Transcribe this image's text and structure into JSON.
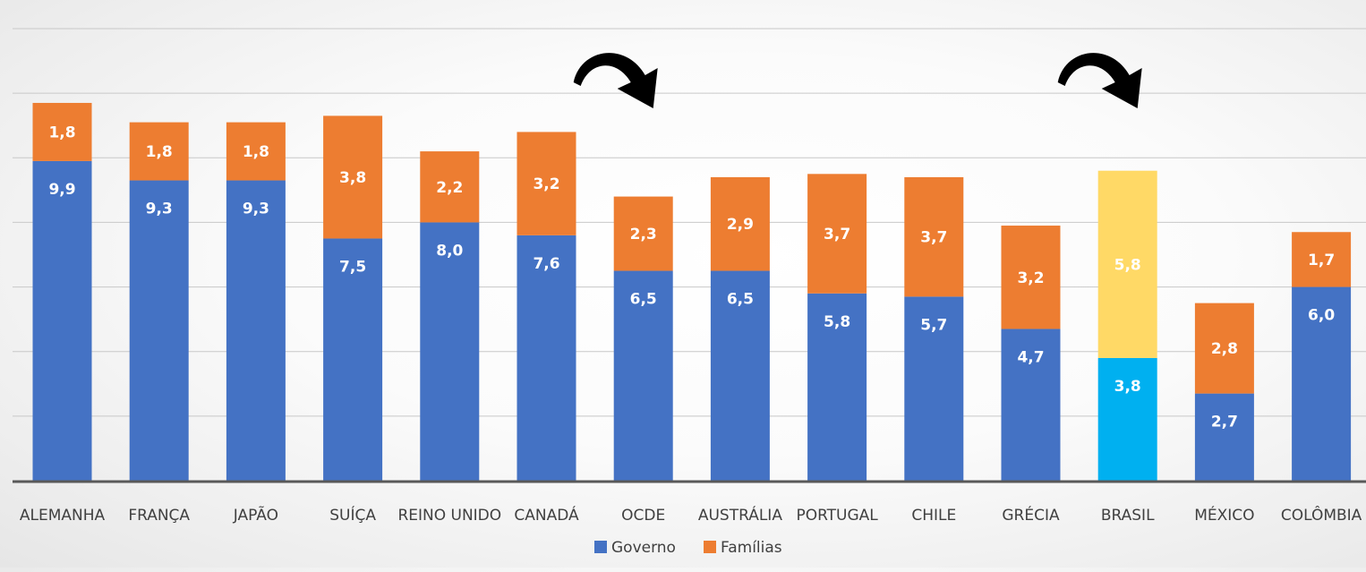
{
  "chart_data": {
    "type": "bar",
    "stacked": true,
    "categories": [
      "ALEMANHA",
      "FRANÇA",
      "JAPÃO",
      "SUÍÇA",
      "REINO UNIDO",
      "CANADÁ",
      "OCDE",
      "AUSTRÁLIA",
      "PORTUGAL",
      "CHILE",
      "GRÉCIA",
      "BRASIL",
      "MÉXICO",
      "COLÔMBIA"
    ],
    "series": [
      {
        "name": "Governo",
        "color": "#4472C4",
        "values": [
          9.9,
          9.3,
          9.3,
          7.5,
          8.0,
          7.6,
          6.5,
          6.5,
          5.8,
          5.7,
          4.7,
          3.8,
          2.7,
          6.0
        ],
        "labels": [
          "9,9",
          "9,3",
          "9,3",
          "7,5",
          "8,0",
          "7,6",
          "6,5",
          "6,5",
          "5,8",
          "5,7",
          "4,7",
          "3,8",
          "2,7",
          "6,0"
        ]
      },
      {
        "name": "Famílias",
        "color": "#ED7D31",
        "values": [
          1.8,
          1.8,
          1.8,
          3.8,
          2.2,
          3.2,
          2.3,
          2.9,
          3.7,
          3.7,
          3.2,
          5.8,
          2.8,
          1.7
        ],
        "labels": [
          "1,8",
          "1,8",
          "1,8",
          "3,8",
          "2,2",
          "3,2",
          "2,3",
          "2,9",
          "3,7",
          "3,7",
          "3,2",
          "5,8",
          "2,8",
          "1,7"
        ]
      }
    ],
    "highlight": {
      "category": "BRASIL",
      "colors": [
        "#00B0F0",
        "#FFD966"
      ]
    },
    "annotations": [
      {
        "type": "arrow",
        "icon": "curved-arrow-down-icon",
        "target": "OCDE"
      },
      {
        "type": "arrow",
        "icon": "curved-arrow-down-icon",
        "target": "BRASIL"
      }
    ],
    "ylim": [
      0,
      14
    ],
    "y_gridline_step": 2,
    "y_tick_labels_shown": false,
    "grid": true,
    "legend_position": "bottom",
    "title": "",
    "xlabel": "",
    "ylabel": ""
  }
}
